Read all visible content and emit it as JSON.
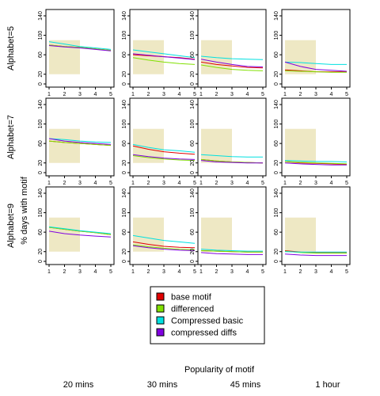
{
  "chart_data": {
    "type": "line",
    "xlabel": "Popularity of motif",
    "ylabel": "% days with motif",
    "x_ticks": [
      1,
      2,
      3,
      4,
      5
    ],
    "y_ticks": [
      0,
      20,
      60,
      100,
      140
    ],
    "xlim": [
      1,
      5
    ],
    "ylim": [
      0,
      140
    ],
    "highlight_region": {
      "x": [
        1,
        3
      ],
      "y": [
        20,
        90
      ]
    },
    "legend": {
      "position": "bottom-center",
      "entries": [
        {
          "label": "base motif",
          "color": "#e00000"
        },
        {
          "label": "differenced",
          "color": "#80e000"
        },
        {
          "label": "Compressed basic",
          "color": "#00e0e0"
        },
        {
          "label": "compressed diffs",
          "color": "#8000e0"
        }
      ]
    },
    "row_labels": [
      "Alphabet=5",
      "Alphabet=7",
      "Alphabet=9"
    ],
    "col_labels": [
      "20 mins",
      "30 mins",
      "45 mins",
      "1 hour"
    ],
    "series_colors": [
      "#e00000",
      "#80e000",
      "#00e0e0",
      "#8000e0"
    ],
    "panels": [
      [
        {
          "series": [
            [
              80,
              77,
              75,
              72,
              69
            ],
            [
              80,
              77,
              75,
              72,
              69
            ],
            [
              87,
              82,
              77,
              74,
              71
            ],
            [
              79,
              76,
              74,
              71,
              68
            ]
          ]
        },
        {
          "series": [
            [
              60,
              58,
              56,
              54,
              51
            ],
            [
              54,
              49,
              45,
              42,
              40
            ],
            [
              70,
              66,
              62,
              58,
              54
            ],
            [
              62,
              59,
              56,
              53,
              50
            ]
          ]
        },
        {
          "series": [
            [
              45,
              40,
              37,
              34,
              33
            ],
            [
              39,
              34,
              30,
              28,
              27
            ],
            [
              57,
              54,
              52,
              51,
              50
            ],
            [
              51,
              45,
              40,
              36,
              35
            ]
          ]
        },
        {
          "series": [
            [
              29,
              27,
              25,
              25,
              25
            ],
            [
              27,
              26,
              25,
              24,
              24
            ],
            [
              45,
              44,
              42,
              40,
              40
            ],
            [
              45,
              36,
              30,
              28,
              26
            ]
          ]
        }
      ],
      [
        {
          "series": [
            [
              65,
              62,
              60,
              58,
              56
            ],
            [
              65,
              62,
              60,
              58,
              56
            ],
            [
              70,
              68,
              65,
              63,
              62
            ],
            [
              70,
              65,
              62,
              60,
              58
            ]
          ]
        },
        {
          "series": [
            [
              55,
              48,
              43,
              40,
              38
            ],
            [
              35,
              31,
              28,
              26,
              25
            ],
            [
              58,
              52,
              47,
              45,
              42
            ],
            [
              37,
              33,
              30,
              28,
              27
            ]
          ]
        },
        {
          "series": [
            [
              27,
              24,
              22,
              21,
              20
            ],
            [
              27,
              24,
              22,
              21,
              20
            ],
            [
              37,
              35,
              33,
              32,
              32
            ],
            [
              25,
              22,
              21,
              20,
              20
            ]
          ]
        },
        {
          "series": [
            [
              23,
              20,
              19,
              18,
              17
            ],
            [
              23,
              21,
              20,
              19,
              18
            ],
            [
              25,
              24,
              23,
              23,
              22
            ],
            [
              20,
              18,
              17,
              16,
              16
            ]
          ]
        }
      ],
      [
        {
          "series": [
            [
              70,
              66,
              62,
              59,
              55
            ],
            [
              70,
              66,
              62,
              59,
              55
            ],
            [
              71,
              67,
              63,
              60,
              57
            ],
            [
              62,
              57,
              54,
              52,
              50
            ]
          ]
        },
        {
          "series": [
            [
              40,
              35,
              31,
              29,
              28
            ],
            [
              34,
              30,
              27,
              25,
              24
            ],
            [
              53,
              48,
              43,
              40,
              37
            ],
            [
              32,
              28,
              25,
              23,
              22
            ]
          ]
        },
        {
          "series": [
            [
              22,
              21,
              20,
              19,
              19
            ],
            [
              22,
              21,
              20,
              19,
              19
            ],
            [
              25,
              23,
              22,
              21,
              21
            ],
            [
              18,
              16,
              15,
              14,
              14
            ]
          ]
        },
        {
          "series": [
            [
              22,
              19,
              18,
              18,
              18
            ],
            [
              21,
              18,
              17,
              17,
              17
            ],
            [
              20,
              19,
              19,
              19,
              19
            ],
            [
              15,
              13,
              12,
              12,
              12
            ]
          ]
        }
      ]
    ]
  }
}
